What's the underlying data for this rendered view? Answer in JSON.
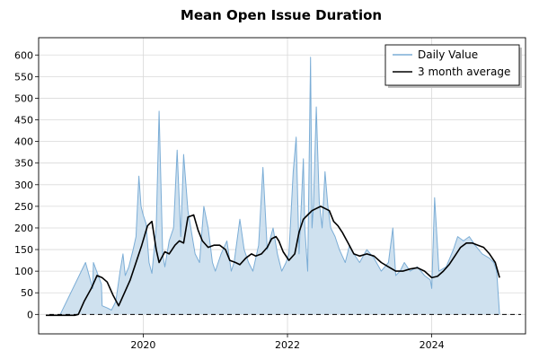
{
  "chart_data": {
    "type": "area",
    "title": "Mean Open Issue Duration",
    "xlabel": "",
    "ylabel": "",
    "xlim": [
      2018.55,
      2025.3
    ],
    "ylim": [
      -45,
      640
    ],
    "x_ticks": [
      2020,
      2022,
      2024
    ],
    "x_tick_labels": [
      "2020",
      "2022",
      "2024"
    ],
    "y_ticks": [
      0,
      50,
      100,
      150,
      200,
      250,
      300,
      350,
      400,
      450,
      500,
      550,
      600
    ],
    "y_tick_labels": [
      "0",
      "50",
      "100",
      "150",
      "200",
      "250",
      "300",
      "350",
      "400",
      "450",
      "500",
      "550",
      "600"
    ],
    "grid": true,
    "legend_position": "top-right",
    "zero_line": "dashed",
    "colors": {
      "daily": "#7badd6",
      "daily_fill": "#cfe1ef",
      "average": "#000000"
    },
    "series": [
      {
        "name": "Daily Value",
        "style": "filled-area",
        "x": [
          2018.85,
          2019.2,
          2019.3,
          2019.31,
          2019.42,
          2019.43,
          2019.5,
          2019.56,
          2019.62,
          2019.68,
          2019.72,
          2019.75,
          2019.8,
          2019.86,
          2019.9,
          2019.94,
          2019.97,
          2020.0,
          2020.04,
          2020.08,
          2020.12,
          2020.18,
          2020.22,
          2020.27,
          2020.3,
          2020.36,
          2020.42,
          2020.47,
          2020.52,
          2020.56,
          2020.62,
          2020.66,
          2020.72,
          2020.78,
          2020.84,
          2020.9,
          2020.96,
          2021.0,
          2021.08,
          2021.16,
          2021.22,
          2021.26,
          2021.34,
          2021.4,
          2021.46,
          2021.52,
          2021.6,
          2021.66,
          2021.72,
          2021.8,
          2021.86,
          2021.92,
          2021.98,
          2022.02,
          2022.08,
          2022.12,
          2022.16,
          2022.22,
          2022.24,
          2022.28,
          2022.32,
          2022.34,
          2022.36,
          2022.4,
          2022.44,
          2022.48,
          2022.52,
          2022.56,
          2022.6,
          2022.66,
          2022.72,
          2022.8,
          2022.86,
          2022.92,
          2023.0,
          2023.1,
          2023.2,
          2023.3,
          2023.4,
          2023.46,
          2023.5,
          2023.56,
          2023.62,
          2023.7,
          2023.8,
          2023.9,
          2023.98,
          2024.0,
          2024.04,
          2024.1,
          2024.2,
          2024.3,
          2024.36,
          2024.44,
          2024.52,
          2024.6,
          2024.7,
          2024.8,
          2024.86,
          2024.9,
          2024.94
        ],
        "values": [
          0,
          120,
          60,
          120,
          70,
          20,
          15,
          10,
          30,
          100,
          140,
          90,
          110,
          150,
          180,
          320,
          250,
          230,
          210,
          120,
          95,
          200,
          470,
          140,
          110,
          170,
          200,
          380,
          180,
          370,
          240,
          200,
          140,
          120,
          250,
          200,
          120,
          100,
          140,
          170,
          100,
          120,
          220,
          150,
          120,
          100,
          160,
          340,
          150,
          200,
          140,
          100,
          120,
          140,
          330,
          410,
          140,
          360,
          200,
          100,
          595,
          200,
          250,
          480,
          260,
          200,
          330,
          250,
          200,
          180,
          150,
          120,
          160,
          140,
          120,
          150,
          130,
          100,
          120,
          200,
          90,
          100,
          120,
          100,
          110,
          90,
          80,
          60,
          270,
          100,
          110,
          150,
          180,
          170,
          180,
          160,
          140,
          130,
          120,
          100,
          0
        ]
      },
      {
        "name": "3 month average",
        "style": "line",
        "x": [
          2018.65,
          2019.05,
          2019.1,
          2019.18,
          2019.28,
          2019.36,
          2019.43,
          2019.5,
          2019.58,
          2019.66,
          2019.74,
          2019.82,
          2019.9,
          2019.98,
          2020.06,
          2020.12,
          2020.18,
          2020.22,
          2020.3,
          2020.36,
          2020.44,
          2020.5,
          2020.56,
          2020.62,
          2020.7,
          2020.76,
          2020.82,
          2020.9,
          2020.98,
          2021.06,
          2021.14,
          2021.2,
          2021.28,
          2021.34,
          2021.42,
          2021.5,
          2021.56,
          2021.64,
          2021.72,
          2021.78,
          2021.84,
          2021.88,
          2021.94,
          2022.02,
          2022.1,
          2022.16,
          2022.22,
          2022.28,
          2022.34,
          2022.4,
          2022.46,
          2022.52,
          2022.58,
          2022.64,
          2022.7,
          2022.76,
          2022.84,
          2022.92,
          2023.0,
          2023.1,
          2023.2,
          2023.3,
          2023.4,
          2023.5,
          2023.6,
          2023.7,
          2023.8,
          2023.9,
          2024.0,
          2024.08,
          2024.16,
          2024.24,
          2024.32,
          2024.4,
          2024.48,
          2024.56,
          2024.64,
          2024.72,
          2024.8,
          2024.88,
          2024.94
        ],
        "values": [
          -2,
          -2,
          0,
          30,
          60,
          90,
          85,
          75,
          45,
          20,
          50,
          80,
          120,
          160,
          205,
          215,
          150,
          120,
          145,
          140,
          160,
          170,
          165,
          225,
          230,
          195,
          170,
          155,
          160,
          160,
          150,
          125,
          120,
          115,
          130,
          140,
          135,
          140,
          155,
          175,
          180,
          170,
          145,
          125,
          140,
          190,
          220,
          230,
          240,
          245,
          250,
          245,
          240,
          215,
          205,
          190,
          165,
          140,
          135,
          140,
          135,
          120,
          110,
          100,
          100,
          105,
          108,
          100,
          85,
          88,
          100,
          115,
          135,
          155,
          165,
          165,
          160,
          155,
          140,
          120,
          85
        ]
      }
    ]
  }
}
